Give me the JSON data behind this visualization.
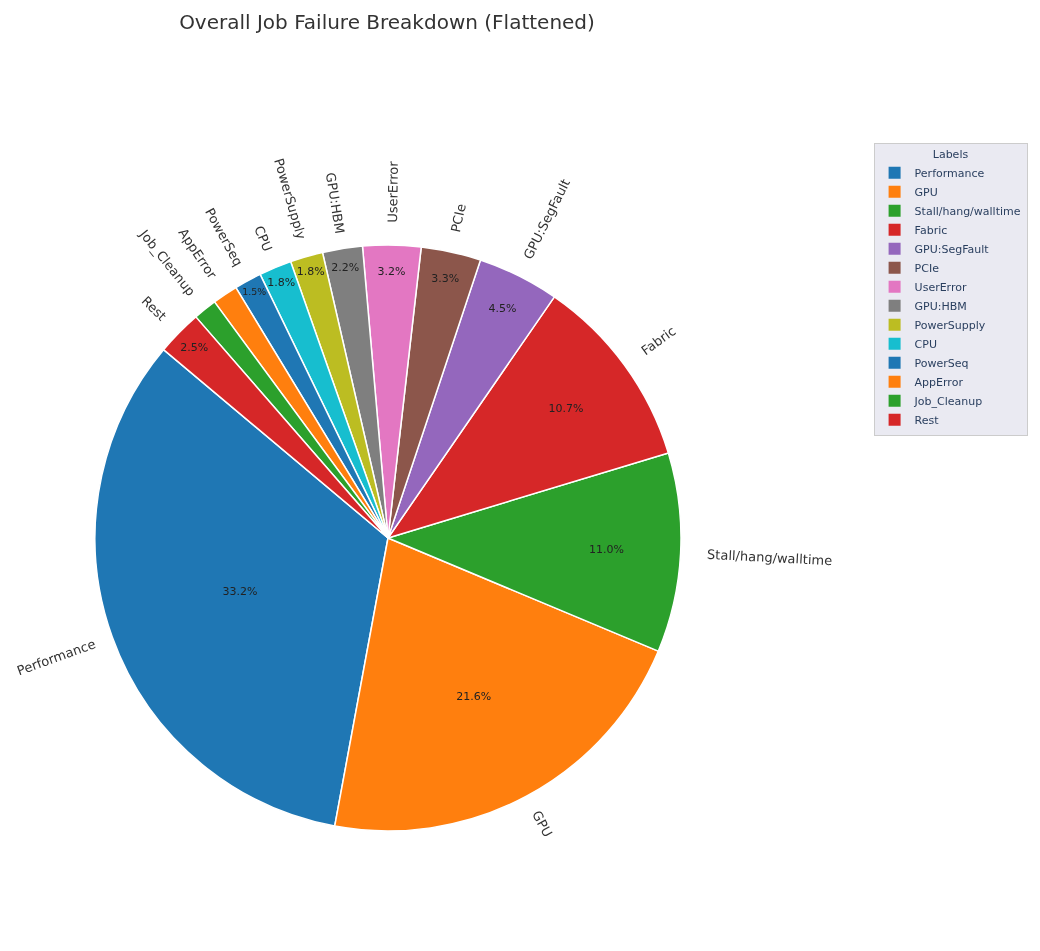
{
  "chart_data": {
    "type": "pie",
    "title": "Overall Job Failure Breakdown (Flattened)",
    "legend_title": "Labels",
    "legend": "top right",
    "categories": [
      "Performance",
      "GPU",
      "Stall/hang/walltime",
      "Fabric",
      "GPU:SegFault",
      "PCIe",
      "UserError",
      "GPU:HBM",
      "PowerSupply",
      "CPU",
      "PowerSeq",
      "AppError",
      "Job_Cleanup",
      "Rest"
    ],
    "values": [
      33.2,
      21.6,
      11.0,
      10.7,
      4.5,
      3.3,
      3.2,
      2.2,
      1.8,
      1.8,
      1.5,
      1.4,
      1.3,
      2.5
    ],
    "value_labels": [
      "33.2%",
      "21.6%",
      "11.0%",
      "10.7%",
      "4.5%",
      "3.3%",
      "3.2%",
      "2.2%",
      "1.8%",
      "1.8%",
      "1.5%",
      null,
      null,
      "2.5%"
    ],
    "colors": [
      "#1f77b4",
      "#ff7f0e",
      "#2ca02c",
      "#d62728",
      "#9467bd",
      "#8c564b",
      "#e377c2",
      "#7f7f7f",
      "#bcbd22",
      "#17becf",
      "#1f77b4",
      "#ff7f0e",
      "#2ca02c",
      "#d62728"
    ]
  }
}
